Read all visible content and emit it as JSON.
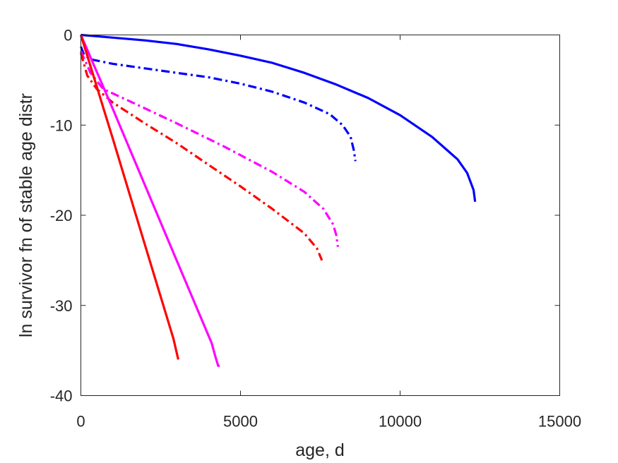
{
  "chart_data": {
    "type": "line",
    "title": "",
    "xlabel": "age, d",
    "ylabel": "ln survivor fn of stable age distr",
    "xlim": [
      0,
      15000
    ],
    "ylim": [
      -40,
      0
    ],
    "xticks": [
      0,
      5000,
      10000,
      15000
    ],
    "xtick_labels": [
      "0",
      "5000",
      "10000",
      "15000"
    ],
    "yticks": [
      0,
      -10,
      -20,
      -30,
      -40
    ],
    "ytick_labels": [
      "0",
      "-10",
      "-20",
      "-30",
      "-40"
    ],
    "grid": false,
    "legend": "none",
    "series": [
      {
        "color": "#0000ff",
        "style": "solid",
        "points": [
          [
            0,
            0
          ],
          [
            1000,
            -0.3
          ],
          [
            2000,
            -0.6
          ],
          [
            3000,
            -1.0
          ],
          [
            4000,
            -1.6
          ],
          [
            5000,
            -2.3
          ],
          [
            6000,
            -3.1
          ],
          [
            7000,
            -4.2
          ],
          [
            8000,
            -5.5
          ],
          [
            9000,
            -7.0
          ],
          [
            10000,
            -8.9
          ],
          [
            11000,
            -11.3
          ],
          [
            11800,
            -13.8
          ],
          [
            12100,
            -15.3
          ],
          [
            12300,
            -17.2
          ],
          [
            12350,
            -18.5
          ]
        ]
      },
      {
        "color": "#0000ff",
        "style": "dashdot",
        "points": [
          [
            0,
            -1.3
          ],
          [
            100,
            -2.2
          ],
          [
            300,
            -2.7
          ],
          [
            1000,
            -3.2
          ],
          [
            2000,
            -3.7
          ],
          [
            3000,
            -4.2
          ],
          [
            4000,
            -4.7
          ],
          [
            5000,
            -5.4
          ],
          [
            6000,
            -6.3
          ],
          [
            7000,
            -7.5
          ],
          [
            7800,
            -8.8
          ],
          [
            8200,
            -10.0
          ],
          [
            8450,
            -11.3
          ],
          [
            8550,
            -12.8
          ],
          [
            8600,
            -14.0
          ]
        ]
      },
      {
        "color": "#ff00ff",
        "style": "dashdot",
        "points": [
          [
            0,
            -1.8
          ],
          [
            300,
            -4.2
          ],
          [
            700,
            -6.0
          ],
          [
            1500,
            -7.3
          ],
          [
            3000,
            -9.8
          ],
          [
            4500,
            -12.4
          ],
          [
            6000,
            -15.2
          ],
          [
            7000,
            -17.4
          ],
          [
            7600,
            -19.3
          ],
          [
            7900,
            -21.0
          ],
          [
            8000,
            -22.2
          ],
          [
            8050,
            -23.5
          ]
        ]
      },
      {
        "color": "#ff0000",
        "style": "dashdot",
        "points": [
          [
            0,
            -2.0
          ],
          [
            200,
            -4.5
          ],
          [
            500,
            -6.0
          ],
          [
            1000,
            -7.5
          ],
          [
            2000,
            -9.8
          ],
          [
            3000,
            -12.0
          ],
          [
            4000,
            -14.4
          ],
          [
            5000,
            -16.8
          ],
          [
            6000,
            -19.3
          ],
          [
            7000,
            -22.0
          ],
          [
            7400,
            -23.7
          ],
          [
            7550,
            -25.0
          ]
        ]
      },
      {
        "color": "#ff00ff",
        "style": "solid",
        "points": [
          [
            0,
            0
          ],
          [
            1000,
            -8.2
          ],
          [
            2000,
            -16.6
          ],
          [
            3000,
            -25.0
          ],
          [
            4100,
            -34.2
          ],
          [
            4200,
            -35.5
          ],
          [
            4300,
            -36.7
          ],
          [
            4350,
            -36.7
          ]
        ]
      },
      {
        "color": "#ff0000",
        "style": "solid",
        "points": [
          [
            0,
            0
          ],
          [
            1000,
            -11.5
          ],
          [
            2000,
            -23.2
          ],
          [
            2900,
            -33.7
          ],
          [
            3050,
            -36.0
          ]
        ]
      }
    ]
  }
}
